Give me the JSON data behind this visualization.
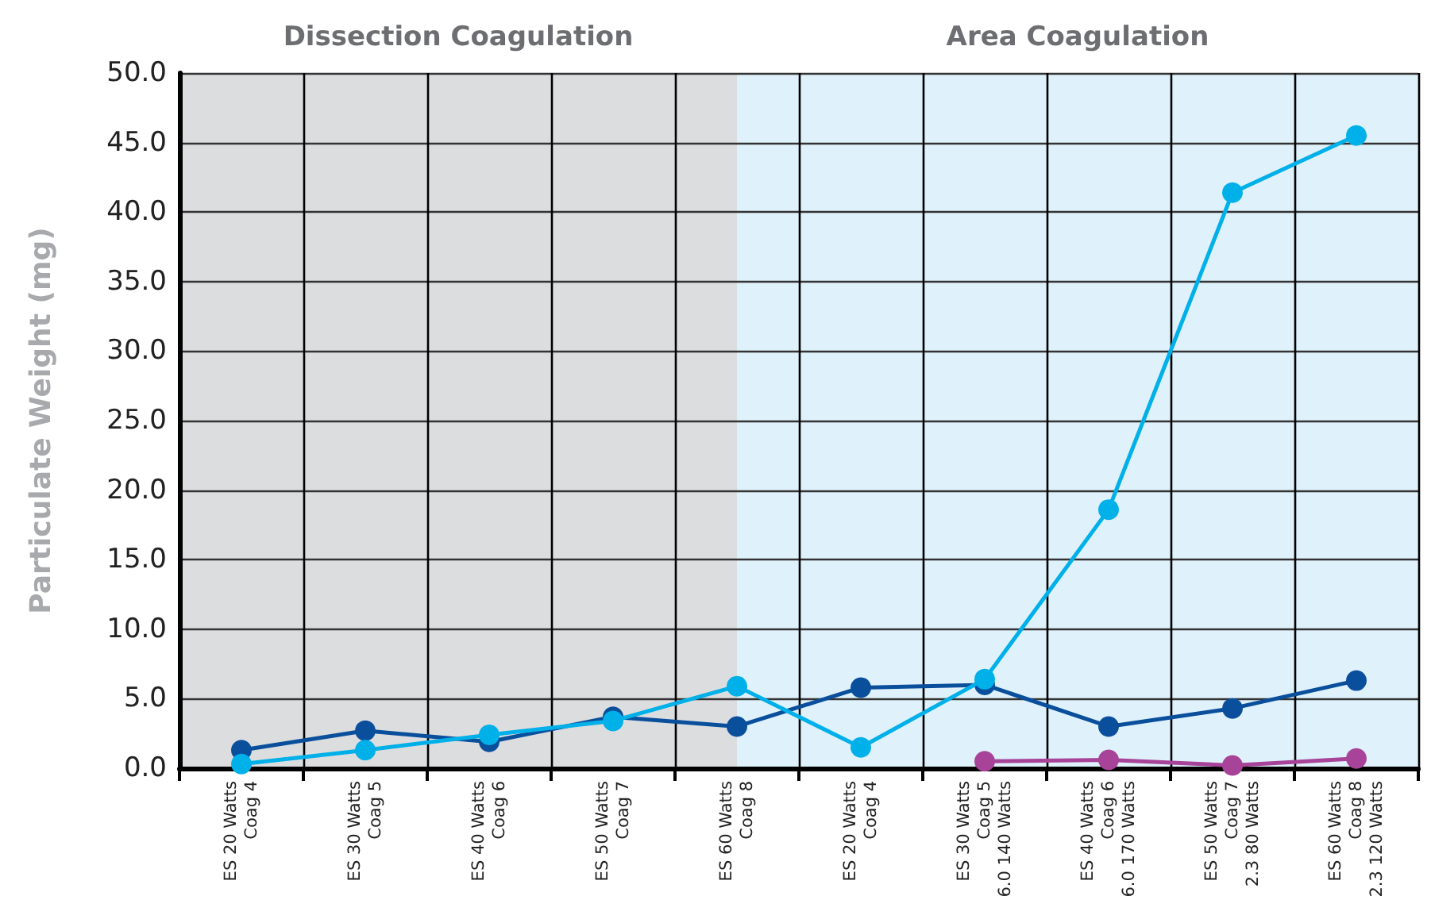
{
  "chart_data": {
    "type": "line",
    "ylabel": "Particulate Weight (mg)",
    "categories": [
      "ES 20 Watts\nCoag 4",
      "ES 30 Watts\nCoag 5",
      "ES 40 Watts\nCoag 6",
      "ES 50 Watts\nCoag 7",
      "ES 60 Watts\nCoag 8",
      "ES 20 Watts\nCoag 4",
      "ES 30 Watts\nCoag 5\n6.0 140 Watts",
      "ES 40 Watts\nCoag 6\n6.0 170 Watts",
      "ES 50 Watts\nCoag 7\n2.3 80 Watts",
      "ES 60 Watts\nCoag 8\n2.3 120 Watts"
    ],
    "series": [
      {
        "color": "#0a4f9c",
        "values": [
          1.3,
          2.7,
          1.9,
          3.7,
          3.0,
          5.8,
          6.0,
          3.0,
          4.3,
          6.3
        ]
      },
      {
        "color": "#00b0e8",
        "values": [
          0.3,
          1.3,
          2.4,
          3.4,
          5.9,
          1.5,
          6.4,
          18.6,
          41.4,
          45.5
        ]
      },
      {
        "color": "#a8439a",
        "values": [
          null,
          null,
          null,
          null,
          null,
          null,
          0.5,
          0.6,
          0.2,
          0.7
        ]
      }
    ],
    "ylim": [
      0,
      50
    ],
    "yticks": [
      {
        "value": 0,
        "label": "0.0"
      },
      {
        "value": 5,
        "label": "5.0"
      },
      {
        "value": 10,
        "label": "10.0"
      },
      {
        "value": 15,
        "label": "15.0"
      },
      {
        "value": 20,
        "label": "20.0"
      },
      {
        "value": 25,
        "label": "25.0"
      },
      {
        "value": 30,
        "label": "30.0"
      },
      {
        "value": 35,
        "label": "35.0"
      },
      {
        "value": 40,
        "label": "40.0"
      },
      {
        "value": 45,
        "label": "45.0"
      },
      {
        "value": 50,
        "label": "50.0"
      }
    ],
    "bands": [
      {
        "axis": "x",
        "from": "ES 20 Watts\nCoag 4",
        "to": "ES 60 Watts\nCoag 8",
        "label": "Dissection Coagulation",
        "color": "#dcdddf"
      },
      {
        "axis": "x",
        "from": "ES 60 Watts\nCoag 8",
        "to": "ES 60 Watts\nCoag 8\n2.3 120 Watts",
        "label": "Area Coagulation",
        "color": "#dff1fb"
      }
    ],
    "grid": true,
    "marker": "circle",
    "line_style": "solid"
  }
}
